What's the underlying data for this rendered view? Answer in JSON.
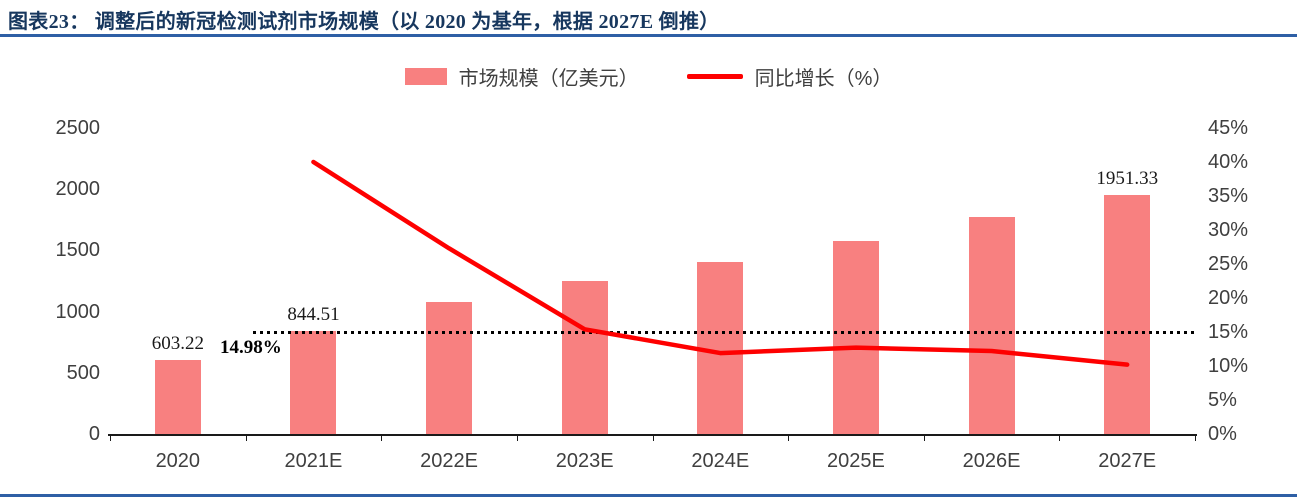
{
  "header": {
    "title": "图表23：  调整后的新冠检测试剂市场规模（以 2020 为基年，根据 2027E 倒推）"
  },
  "chart_data": {
    "type": "combo-bar-line",
    "categories": [
      "2020",
      "2021E",
      "2022E",
      "2023E",
      "2024E",
      "2025E",
      "2026E",
      "2027E"
    ],
    "series": [
      {
        "name": "市场规模（亿美元）",
        "chart": "bar",
        "axis": "left",
        "color": "#F88080",
        "values": [
          603.22,
          844.51,
          1080,
          1248,
          1405,
          1577,
          1771,
          1951.33
        ]
      },
      {
        "name": "同比增长（%）",
        "chart": "line",
        "axis": "right",
        "color": "#FE0000",
        "values": [
          null,
          40.0,
          27.3,
          15.4,
          11.9,
          12.7,
          12.2,
          10.2
        ]
      }
    ],
    "left_axis": {
      "min": 0,
      "max": 2500,
      "ticks": [
        "0",
        "500",
        "1000",
        "1500",
        "2000",
        "2500"
      ]
    },
    "right_axis": {
      "min": 0,
      "max": 45,
      "ticks": [
        "0%",
        "5%",
        "10%",
        "15%",
        "20%",
        "25%",
        "30%",
        "35%",
        "40%",
        "45%"
      ]
    },
    "bar_labels": {
      "0": "603.22",
      "1": "844.51",
      "7": "1951.33"
    },
    "reference_line": {
      "value_right_axis": 14.98,
      "label": "14.98%",
      "style": "dotted",
      "color": "#000000"
    },
    "grid": false,
    "legend_position": "top-center"
  },
  "colors": {
    "title": "#17375E",
    "rule": "#2E5FA5",
    "bar": "#F88080",
    "line": "#FE0000",
    "axis_text": "#3F3F3F"
  }
}
